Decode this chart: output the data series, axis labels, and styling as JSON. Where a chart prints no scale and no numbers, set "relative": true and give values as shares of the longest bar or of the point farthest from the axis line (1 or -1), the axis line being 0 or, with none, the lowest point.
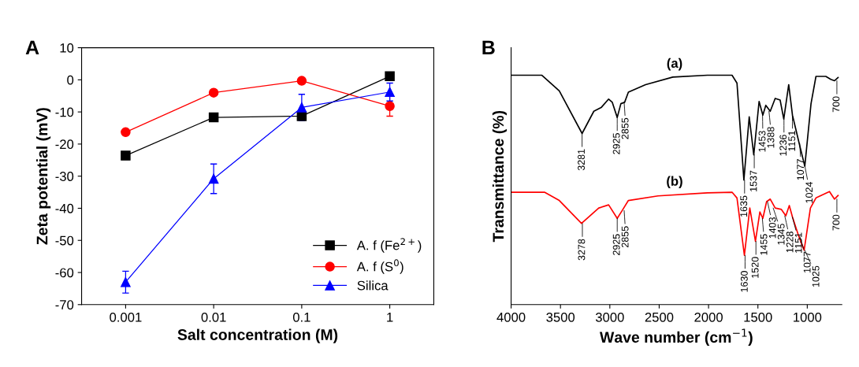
{
  "chart_data": [
    {
      "type": "line",
      "title": "A",
      "xlabel": "Salt concentration (M)",
      "ylabel": "Zeta potential (mV)",
      "categories": [
        "0.001",
        "0.01",
        "0.1",
        "1"
      ],
      "ylim": [
        -70,
        10
      ],
      "yticks": [
        -70,
        -60,
        -50,
        -40,
        -30,
        -20,
        -10,
        0,
        10
      ],
      "legend": "bottom right",
      "grid": false,
      "series": [
        {
          "name": "A. f (Fe$^{2+}$)",
          "color": "#000000",
          "marker": "square",
          "values": [
            -23.6,
            -11.7,
            -11.3,
            1.1
          ],
          "errors": [
            null,
            null,
            null,
            1.0
          ]
        },
        {
          "name": "A. f (S$^{0}$)",
          "color": "#ff0000",
          "marker": "circle",
          "values": [
            -16.3,
            -4.0,
            -0.3,
            -8.2
          ],
          "errors": [
            null,
            null,
            null,
            3.1
          ]
        },
        {
          "name": "Silica",
          "color": "#0000ff",
          "marker": "triangle",
          "values": [
            -63.0,
            -30.8,
            -8.6,
            -3.8
          ],
          "errors": [
            3.4,
            4.6,
            4.1,
            2.8
          ]
        }
      ]
    },
    {
      "type": "line",
      "title": "B",
      "xlabel": "Wave number (cm$^{−1}$)",
      "ylabel": "Transmittance (%)",
      "relative": true,
      "xlim": [
        4000,
        650
      ],
      "xticks": [
        4000,
        3500,
        3000,
        2500,
        2000,
        1500,
        1000
      ],
      "tick_labels": "x",
      "legend": false,
      "grid": false,
      "marker": "none",
      "series": [
        {
          "name": "(a)",
          "color": "#000000",
          "x": [
            4000,
            3688,
            3512,
            3281,
            3162,
            3088,
            3012,
            2975,
            2925,
            2888,
            2850,
            2812,
            2638,
            2362,
            2012,
            1762,
            1712,
            1642,
            1588,
            1542,
            1488,
            1450,
            1420,
            1375,
            1325,
            1275,
            1238,
            1188,
            1150,
            1082,
            1025,
            962,
            912,
            812,
            762,
            725,
            688
          ],
          "values": [
            1.0,
            1.0,
            0.932,
            0.746,
            0.843,
            0.859,
            0.896,
            0.882,
            0.816,
            0.876,
            0.882,
            0.926,
            0.959,
            0.992,
            1.0,
            1.0,
            0.966,
            0.543,
            0.819,
            0.653,
            0.886,
            0.826,
            0.869,
            0.843,
            0.899,
            0.892,
            0.809,
            0.959,
            0.826,
            0.703,
            0.603,
            0.876,
            0.995,
            0.995,
            0.982,
            0.976,
            0.99
          ]
        },
        {
          "name": "(b)",
          "color": "#ff0000",
          "x": [
            4000,
            3662,
            3512,
            3287,
            3112,
            3012,
            2925,
            2875,
            2812,
            2512,
            2012,
            1762,
            1712,
            1637,
            1582,
            1525,
            1480,
            1450,
            1412,
            1375,
            1325,
            1262,
            1217,
            1182,
            1150,
            1087,
            1032,
            968,
            912,
            775,
            725,
            688
          ],
          "values": [
            0.49,
            0.49,
            0.454,
            0.354,
            0.421,
            0.435,
            0.376,
            0.41,
            0.454,
            0.474,
            0.487,
            0.49,
            0.465,
            0.215,
            0.421,
            0.276,
            0.404,
            0.376,
            0.449,
            0.46,
            0.421,
            0.415,
            0.387,
            0.432,
            0.382,
            0.299,
            0.237,
            0.421,
            0.465,
            0.493,
            0.46,
            0.476
          ]
        }
      ],
      "annotations": [
        {
          "text": "3281",
          "x": 3281,
          "y": 0.746
        },
        {
          "text": "2925",
          "x": 2925,
          "y": 0.816
        },
        {
          "text": "2855",
          "x": 2855,
          "y": 0.882
        },
        {
          "text": "1635",
          "x": 1635,
          "y": 0.543
        },
        {
          "text": "1537",
          "x": 1537,
          "y": 0.653
        },
        {
          "text": "1453",
          "x": 1453,
          "y": 0.826
        },
        {
          "text": "1388",
          "x": 1388,
          "y": 0.843
        },
        {
          "text": "1236",
          "x": 1236,
          "y": 0.809
        },
        {
          "text": "1151",
          "x": 1151,
          "y": 0.826
        },
        {
          "text": "1077",
          "x": 1077,
          "y": 0.703
        },
        {
          "text": "1024",
          "x": 1024,
          "y": 0.603
        },
        {
          "text": "700",
          "x": 700,
          "y": 0.976
        },
        {
          "text": "3278",
          "x": 3278,
          "y": 0.354
        },
        {
          "text": "2925",
          "x": 2925,
          "y": 0.376
        },
        {
          "text": "2855",
          "x": 2855,
          "y": 0.41
        },
        {
          "text": "1630",
          "x": 1630,
          "y": 0.215
        },
        {
          "text": "1520",
          "x": 1520,
          "y": 0.276
        },
        {
          "text": "1455",
          "x": 1455,
          "y": 0.376
        },
        {
          "text": "1403",
          "x": 1403,
          "y": 0.449
        },
        {
          "text": "1345",
          "x": 1345,
          "y": 0.421
        },
        {
          "text": "1228",
          "x": 1228,
          "y": 0.387
        },
        {
          "text": "1151",
          "x": 1151,
          "y": 0.382
        },
        {
          "text": "1077",
          "x": 1077,
          "y": 0.299
        },
        {
          "text": "1025",
          "x": 1025,
          "y": 0.237
        },
        {
          "text": "700",
          "x": 700,
          "y": 0.46
        }
      ]
    }
  ]
}
